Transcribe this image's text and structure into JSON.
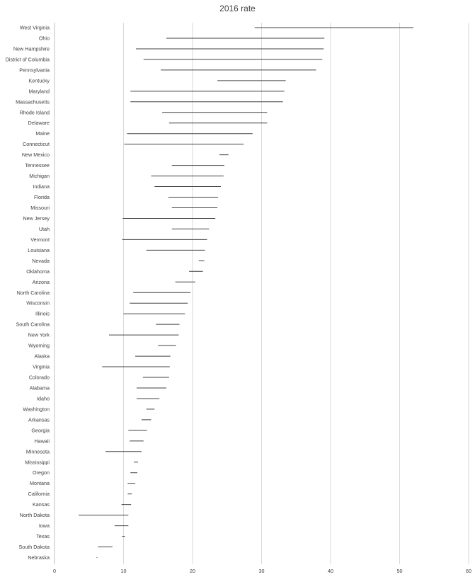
{
  "chart_data": {
    "type": "bar",
    "subtype": "floating-range",
    "title": "2016 rate",
    "xlabel": "",
    "ylabel": "",
    "xlim": [
      0,
      60
    ],
    "x_ticks": [
      0,
      10,
      20,
      30,
      40,
      50,
      60
    ],
    "grid": true,
    "legend": "none",
    "colors": {
      "range": "#404040",
      "grid": "#d9d9d9",
      "text": "#404040"
    },
    "categories": [
      "West Virginia",
      "Ohio",
      "New Hampshire",
      "District of Columbia",
      "Pennsylvania",
      "Kentucky",
      "Maryland",
      "Massachusetts",
      "Rhode Island",
      "Delaware",
      "Maine",
      "Connecticut",
      "New Mexico",
      "Tennessee",
      "Michigan",
      "Indiana",
      "Florida",
      "Missouri",
      "New Jersey",
      "Utah",
      "Vermont",
      "Louisiana",
      "Nevada",
      "Oklahoma",
      "Arizona",
      "North Carolina",
      "Wisconsin",
      "Illinois",
      "South Carolina",
      "New York",
      "Wyoming",
      "Alaska",
      "Virginia",
      "Colorado",
      "Alabama",
      "Idaho",
      "Washington",
      "Arkansas",
      "Georgia",
      "Hawaii",
      "Minnesota",
      "Mississippi",
      "Oregon",
      "Montana",
      "California",
      "Kansas",
      "North Dakota",
      "Iowa",
      "Texas",
      "South Dakota",
      "Nebraska"
    ],
    "series": [
      {
        "values": [
          [
            29.0,
            52.0
          ],
          [
            16.2,
            39.1
          ],
          [
            11.8,
            39.0
          ],
          [
            12.9,
            38.8
          ],
          [
            15.4,
            37.9
          ],
          [
            23.6,
            33.5
          ],
          [
            11.0,
            33.3
          ],
          [
            11.0,
            33.1
          ],
          [
            15.6,
            30.8
          ],
          [
            16.6,
            30.8
          ],
          [
            10.5,
            28.7
          ],
          [
            10.1,
            27.4
          ],
          [
            23.9,
            25.2
          ],
          [
            17.0,
            24.6
          ],
          [
            14.0,
            24.5
          ],
          [
            14.5,
            24.1
          ],
          [
            16.5,
            23.7
          ],
          [
            17.0,
            23.6
          ],
          [
            9.9,
            23.3
          ],
          [
            17.0,
            22.4
          ],
          [
            9.8,
            22.1
          ],
          [
            13.3,
            21.8
          ],
          [
            20.9,
            21.7
          ],
          [
            19.5,
            21.5
          ],
          [
            17.5,
            20.4
          ],
          [
            11.4,
            19.7
          ],
          [
            10.9,
            19.3
          ],
          [
            10.0,
            18.9
          ],
          [
            14.7,
            18.1
          ],
          [
            7.9,
            18.0
          ],
          [
            15.0,
            17.6
          ],
          [
            11.7,
            16.8
          ],
          [
            6.9,
            16.7
          ],
          [
            12.8,
            16.6
          ],
          [
            11.9,
            16.2
          ],
          [
            11.9,
            15.2
          ],
          [
            13.3,
            14.5
          ],
          [
            12.6,
            14.0
          ],
          [
            10.7,
            13.4
          ],
          [
            10.9,
            12.9
          ],
          [
            7.4,
            12.6
          ],
          [
            11.5,
            12.1
          ],
          [
            11.0,
            12.0
          ],
          [
            10.6,
            11.7
          ],
          [
            10.6,
            11.2
          ],
          [
            9.7,
            11.1
          ],
          [
            3.5,
            10.7
          ],
          [
            8.7,
            10.7
          ],
          [
            9.8,
            10.2
          ],
          [
            6.3,
            8.4
          ],
          [
            6.1,
            6.2
          ]
        ]
      }
    ]
  }
}
